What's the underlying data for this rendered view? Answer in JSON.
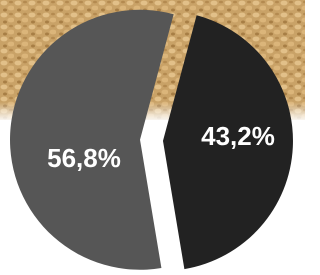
{
  "chart_data": {
    "type": "pie",
    "categories": [
      null,
      null
    ],
    "values": [
      56.8,
      43.2
    ],
    "value_labels": [
      "56,8%",
      "43,2%"
    ],
    "colors": [
      "#565656",
      "#222222"
    ]
  }
}
